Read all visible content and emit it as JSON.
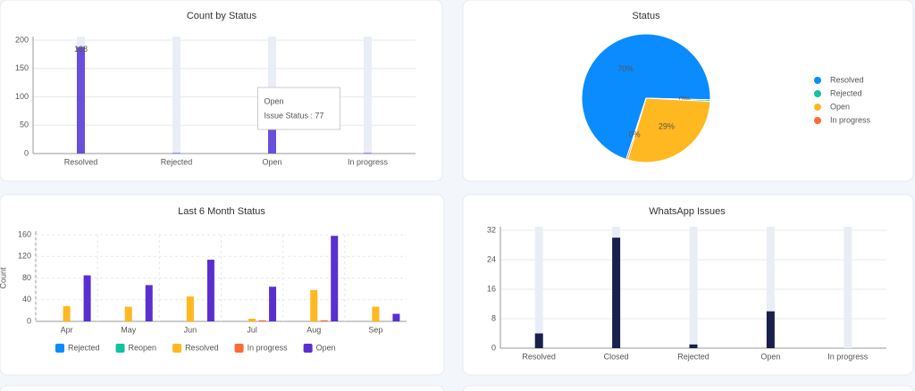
{
  "chart_data": [
    {
      "type": "bar",
      "title": "Count by Status",
      "categories": [
        "Resolved",
        "Rejected",
        "Open",
        "In progress"
      ],
      "series": [
        {
          "name": "Issue Status",
          "color": "#6a4fdc",
          "values": [
            188,
            1,
            77,
            1
          ],
          "value_labels": [
            "188",
            null,
            null,
            null
          ]
        }
      ],
      "ylim": [
        0,
        200
      ],
      "yticks": [
        0,
        50,
        100,
        150,
        200
      ],
      "grid": true,
      "track_color": "#e9eef6",
      "tooltip": {
        "title": "Open",
        "text": "Issue Status : 77"
      }
    },
    {
      "type": "pie",
      "title": "Status",
      "categories": [
        "Resolved",
        "Rejected",
        "Open",
        "In progress"
      ],
      "values": [
        70.4,
        0.4,
        28.8,
        0.4
      ],
      "value_labels": [
        "70%",
        "0%",
        "29%",
        "0%"
      ],
      "colors": [
        "#0a8cff",
        "#12c2a0",
        "#ffb81f",
        "#ff6b35"
      ],
      "legend": "right"
    },
    {
      "type": "bar",
      "title": "Last 6 Month Status",
      "y_label": "Count",
      "categories": [
        "Apr",
        "May",
        "Jun",
        "Jul",
        "Aug",
        "Sep"
      ],
      "series": [
        {
          "name": "Rejected",
          "color": "#0a8cff",
          "values": [
            0,
            0,
            0,
            0,
            0,
            0
          ]
        },
        {
          "name": "Reopen",
          "color": "#12c2a0",
          "values": [
            0,
            0,
            0,
            0,
            0,
            0
          ]
        },
        {
          "name": "Resolved",
          "color": "#ffb81f",
          "values": [
            28,
            27,
            46,
            5,
            58,
            27
          ]
        },
        {
          "name": "In progress",
          "color": "#ff6b35",
          "values": [
            0,
            0,
            0,
            2,
            2,
            0
          ]
        },
        {
          "name": "Open",
          "color": "#5a2fd0",
          "values": [
            85,
            67,
            114,
            64,
            158,
            14
          ]
        }
      ],
      "ylim": [
        0,
        160
      ],
      "yticks": [
        0,
        40,
        80,
        120,
        160
      ],
      "grid": true,
      "legend": "bottom"
    },
    {
      "type": "bar",
      "title": "WhatsApp Issues",
      "categories": [
        "Resolved",
        "Closed",
        "Rejected",
        "Open",
        "In progress"
      ],
      "series": [
        {
          "name": "WhatsApp Issues",
          "color": "#1b1f4b",
          "values": [
            4,
            30,
            1,
            10,
            0
          ]
        }
      ],
      "ylim": [
        0,
        32
      ],
      "yticks": [
        0,
        8,
        16,
        24,
        32
      ],
      "grid": true,
      "track_color": "#e9eef6"
    }
  ]
}
